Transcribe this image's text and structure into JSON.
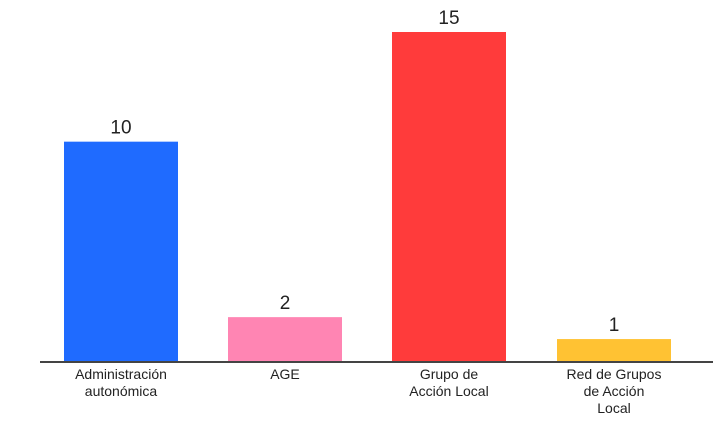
{
  "chart_data": {
    "type": "bar",
    "categories": [
      [
        "Administración",
        "autonómica"
      ],
      [
        "AGE"
      ],
      [
        "Grupo de",
        "Acción Local"
      ],
      [
        "Red de Grupos",
        "de Acción",
        "Local"
      ]
    ],
    "values": [
      10,
      2,
      15,
      1
    ],
    "colors": [
      "#1f6bff",
      "#ff85b3",
      "#ff3b3b",
      "#ffc233"
    ],
    "title": "",
    "xlabel": "",
    "ylabel": "",
    "ylim": [
      0,
      15
    ],
    "grid": false,
    "axis_color": "#444444"
  }
}
